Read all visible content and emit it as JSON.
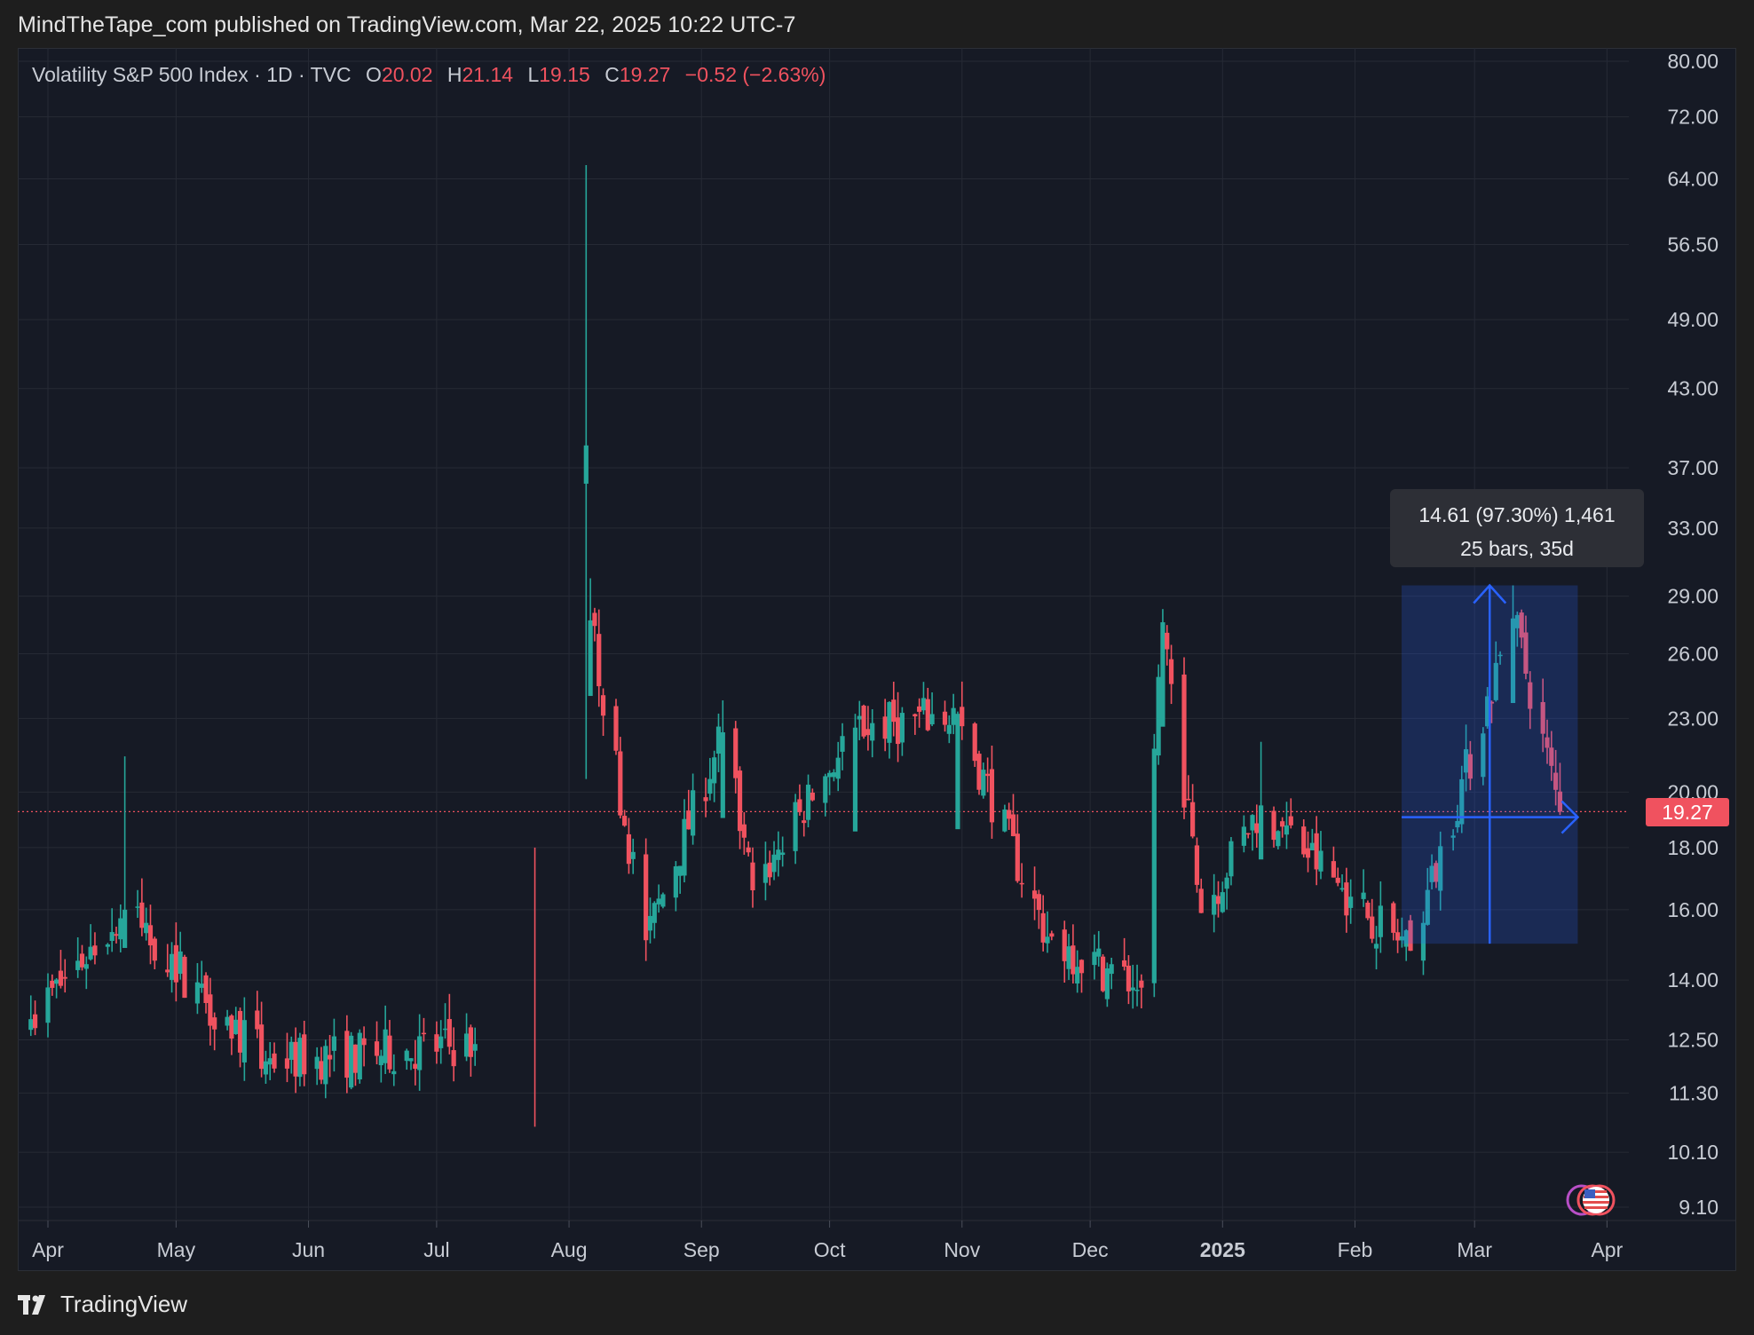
{
  "header": {
    "publisher": "MindTheTape_com published on TradingView.com, Mar 22, 2025 10:22 UTC-7"
  },
  "legend": {
    "symbol": "Volatility S&P 500 Index · 1D · TVC",
    "o_label": "O",
    "o_value": "20.02",
    "h_label": "H",
    "h_value": "21.14",
    "l_label": "L",
    "l_value": "19.15",
    "c_label": "C",
    "c_value": "19.27",
    "change": "−0.52 (−2.63%)"
  },
  "measure_tooltip": {
    "line1": "14.61 (97.30%) 1,461",
    "line2": "25 bars, 35d"
  },
  "last_price_label": "19.27",
  "footer": {
    "brand": "TradingView"
  },
  "colors": {
    "up": "#26a69a",
    "down": "#f0525f",
    "background": "#161a25",
    "measure": "#2962ff",
    "grid": "#262a35"
  },
  "chart_data": {
    "type": "candlestick",
    "scale": "log",
    "symbol": "Volatility S&P 500 Index",
    "interval": "1D",
    "exchange": "TVC",
    "last_close": 19.27,
    "y_ticks": [
      "80.00",
      "72.00",
      "64.00",
      "56.50",
      "49.00",
      "43.00",
      "37.00",
      "33.00",
      "29.00",
      "26.00",
      "23.00",
      "20.00",
      "18.00",
      "16.00",
      "14.00",
      "12.50",
      "11.30",
      "10.10",
      "9.10"
    ],
    "x_ticks": [
      "Apr",
      "May",
      "Jun",
      "Jul",
      "Aug",
      "Sep",
      "Oct",
      "Nov",
      "Dec",
      "2025",
      "Feb",
      "Mar",
      "Apr"
    ],
    "x_ticks_bold": [
      "2025"
    ],
    "ohlc_key_points": [
      {
        "date": "2024-03-28",
        "close": 13.0
      },
      {
        "date": "2024-04-19",
        "high": 21.4,
        "close": 16.0
      },
      {
        "date": "2024-05-22",
        "low": 11.5,
        "close": 12.0
      },
      {
        "date": "2024-07-10",
        "close": 12.4
      },
      {
        "date": "2024-07-24",
        "low": 10.6,
        "high": 18.0
      },
      {
        "date": "2024-08-05",
        "high": 65.7,
        "low": 20.5,
        "close": 38.6
      },
      {
        "date": "2024-08-06",
        "high": 30.0,
        "close": 27.7
      },
      {
        "date": "2024-08-19",
        "close": 15.1
      },
      {
        "date": "2024-09-06",
        "high": 23.8,
        "close": 22.4
      },
      {
        "date": "2024-09-13",
        "close": 16.6
      },
      {
        "date": "2024-10-07",
        "high": 23.2,
        "close": 22.6
      },
      {
        "date": "2024-10-31",
        "high": 23.3,
        "close": 23.2
      },
      {
        "date": "2024-11-21",
        "close": 15.2
      },
      {
        "date": "2024-12-13",
        "close": 13.8
      },
      {
        "date": "2024-12-18",
        "high": 28.3,
        "close": 27.6
      },
      {
        "date": "2024-12-27",
        "close": 15.9
      },
      {
        "date": "2025-01-10",
        "high": 22.0,
        "close": 19.5
      },
      {
        "date": "2025-01-31",
        "close": 16.4
      },
      {
        "date": "2025-02-14",
        "close": 14.8
      },
      {
        "date": "2025-03-10",
        "high": 29.6,
        "close": 27.8
      },
      {
        "date": "2025-03-21",
        "open": 20.02,
        "high": 21.14,
        "low": 19.15,
        "close": 19.27
      }
    ],
    "measurement": {
      "from_date": "2025-02-14",
      "to_date": "2025-03-21",
      "low": 15.0,
      "high": 29.6,
      "price_change": 14.61,
      "percent_change": 97.3,
      "ticks": 1461,
      "bars": 25,
      "days": 35
    }
  }
}
